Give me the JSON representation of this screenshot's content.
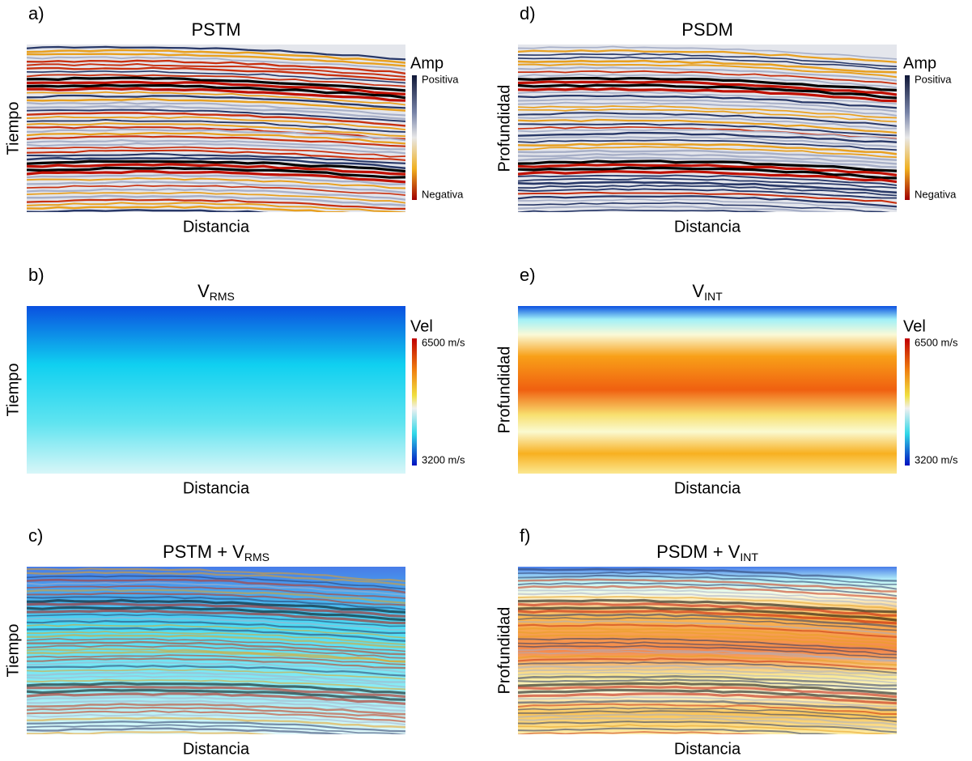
{
  "panels": [
    {
      "label": "a)",
      "title": "PSTM",
      "xlabel": "Distancia",
      "ylabel": "Tiempo",
      "colorbar": {
        "title": "Amp",
        "top": "Positiva",
        "bottom": "Negativa"
      }
    },
    {
      "label": "b)",
      "title": "V",
      "title_sub": "RMS",
      "xlabel": "Distancia",
      "ylabel": "Tiempo",
      "colorbar": {
        "title": "Vel",
        "top": "6500 m/s",
        "bottom": "3200 m/s"
      }
    },
    {
      "label": "c)",
      "title": "PSTM + V",
      "title_sub": "RMS",
      "xlabel": "Distancia",
      "ylabel": "Tiempo"
    },
    {
      "label": "d)",
      "title": "PSDM",
      "xlabel": "Distancia",
      "ylabel": "Profundidad",
      "colorbar": {
        "title": "Amp",
        "top": "Positiva",
        "bottom": "Negativa"
      }
    },
    {
      "label": "e)",
      "title": "V",
      "title_sub": "INT",
      "xlabel": "Distancia",
      "ylabel": "Profundidad",
      "colorbar": {
        "title": "Vel",
        "top": "6500 m/s",
        "bottom": "3200 m/s"
      }
    },
    {
      "label": "f)",
      "title": "PSDM + V",
      "title_sub": "INT",
      "xlabel": "Distancia",
      "ylabel": "Profundidad"
    }
  ]
}
